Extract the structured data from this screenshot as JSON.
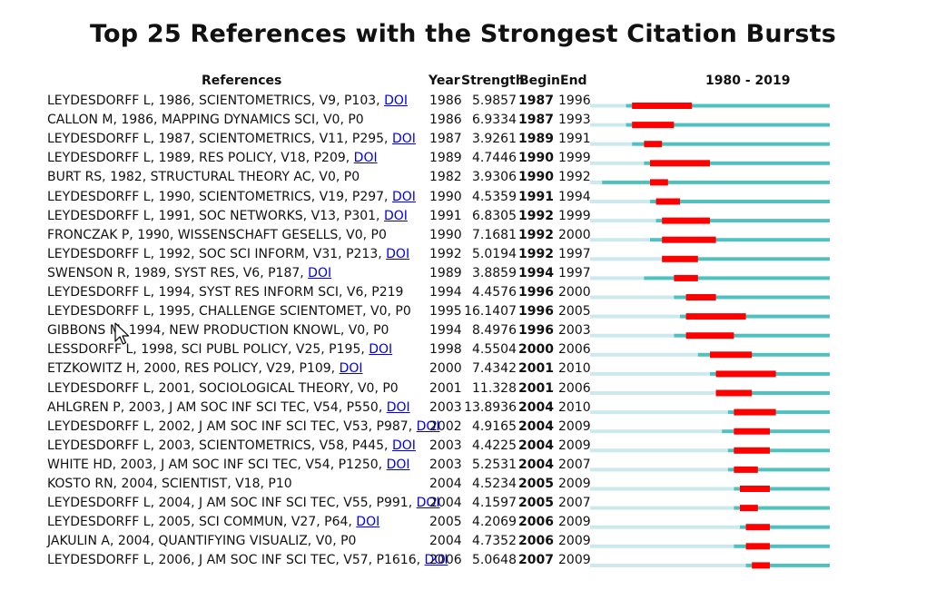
{
  "chart_data": {
    "type": "bar",
    "title": "Top 25 References with the Strongest Citation Bursts",
    "columns": [
      "References",
      "Year",
      "Strength",
      "Begin",
      "End",
      "1980 - 2019"
    ],
    "timeline": {
      "start": 1980,
      "end": 2019
    },
    "colors": {
      "burst": "#ff0000",
      "active": "#4fc1c1",
      "inactive": "#cce9ee"
    },
    "rows": [
      {
        "reference": "LEYDESDORFF L, 1986, SCIENTOMETRICS, V9, P103, ",
        "doi": "DOI",
        "year": 1986,
        "strength": "5.9857",
        "begin": 1987,
        "end": 1996
      },
      {
        "reference": "CALLON M, 1986, MAPPING DYNAMICS SCI, V0, P0",
        "doi": "",
        "year": 1986,
        "strength": "6.9334",
        "begin": 1987,
        "end": 1993
      },
      {
        "reference": "LEYDESDORFF L, 1987, SCIENTOMETRICS, V11, P295, ",
        "doi": "DOI",
        "year": 1987,
        "strength": "3.9261",
        "begin": 1989,
        "end": 1991
      },
      {
        "reference": "LEYDESDORFF L, 1989, RES POLICY, V18, P209, ",
        "doi": "DOI",
        "year": 1989,
        "strength": "4.7446",
        "begin": 1990,
        "end": 1999
      },
      {
        "reference": "BURT RS, 1982, STRUCTURAL THEORY AC, V0, P0",
        "doi": "",
        "year": 1982,
        "strength": "3.9306",
        "begin": 1990,
        "end": 1992
      },
      {
        "reference": "LEYDESDORFF L, 1990, SCIENTOMETRICS, V19, P297, ",
        "doi": "DOI",
        "year": 1990,
        "strength": "4.5359",
        "begin": 1991,
        "end": 1994
      },
      {
        "reference": "LEYDESDORFF L, 1991, SOC NETWORKS, V13, P301, ",
        "doi": "DOI",
        "year": 1991,
        "strength": "6.8305",
        "begin": 1992,
        "end": 1999
      },
      {
        "reference": "FRONCZAK P, 1990, WISSENSCHAFT GESELLS, V0, P0",
        "doi": "",
        "year": 1990,
        "strength": "7.1681",
        "begin": 1992,
        "end": 2000
      },
      {
        "reference": "LEYDESDORFF L, 1992, SOC SCI INFORM, V31, P213, ",
        "doi": "DOI",
        "year": 1992,
        "strength": "5.0194",
        "begin": 1992,
        "end": 1997
      },
      {
        "reference": "SWENSON R, 1989, SYST RES, V6, P187, ",
        "doi": "DOI",
        "year": 1989,
        "strength": "3.8859",
        "begin": 1994,
        "end": 1997
      },
      {
        "reference": "LEYDESDORFF L, 1994, SYST RES INFORM SCI, V6, P219",
        "doi": "",
        "year": 1994,
        "strength": "4.4576",
        "begin": 1996,
        "end": 2000
      },
      {
        "reference": "LEYDESDORFF L, 1995, CHALLENGE SCIENTOMET, V0, P0",
        "doi": "",
        "year": 1995,
        "strength": "16.1407",
        "begin": 1996,
        "end": 2005
      },
      {
        "reference": "GIBBONS M, 1994, NEW PRODUCTION KNOWL, V0, P0",
        "doi": "",
        "year": 1994,
        "strength": "8.4976",
        "begin": 1996,
        "end": 2003
      },
      {
        "reference": "LESSDORFF L, 1998, SCI PUBL POLICY, V25, P195, ",
        "doi": "DOI",
        "year": 1998,
        "strength": "4.5504",
        "begin": 2000,
        "end": 2006
      },
      {
        "reference": "ETZKOWITZ H, 2000, RES POLICY, V29, P109, ",
        "doi": "DOI",
        "year": 2000,
        "strength": "7.4342",
        "begin": 2001,
        "end": 2010
      },
      {
        "reference": "LEYDESDORFF L, 2001, SOCIOLOGICAL THEORY, V0, P0",
        "doi": "",
        "year": 2001,
        "strength": "11.328",
        "begin": 2001,
        "end": 2006
      },
      {
        "reference": "AHLGREN P, 2003, J AM SOC INF SCI TEC, V54, P550, ",
        "doi": "DOI",
        "year": 2003,
        "strength": "13.8936",
        "begin": 2004,
        "end": 2010
      },
      {
        "reference": "LEYDESDORFF L, 2002, J AM SOC INF SCI TEC, V53, P987, ",
        "doi": "DOI",
        "year": 2002,
        "strength": "4.9165",
        "begin": 2004,
        "end": 2009
      },
      {
        "reference": "LEYDESDORFF L, 2003, SCIENTOMETRICS, V58, P445, ",
        "doi": "DOI",
        "year": 2003,
        "strength": "4.4225",
        "begin": 2004,
        "end": 2009
      },
      {
        "reference": "WHITE HD, 2003, J AM SOC INF SCI TEC, V54, P1250, ",
        "doi": "DOI",
        "year": 2003,
        "strength": "5.2531",
        "begin": 2004,
        "end": 2007
      },
      {
        "reference": "KOSTO RN, 2004, SCIENTIST, V18, P10",
        "doi": "",
        "year": 2004,
        "strength": "4.5234",
        "begin": 2005,
        "end": 2009
      },
      {
        "reference": "LEYDESDORFF L, 2004, J AM SOC INF SCI TEC, V55, P991, ",
        "doi": "DOI",
        "year": 2004,
        "strength": "4.1597",
        "begin": 2005,
        "end": 2007
      },
      {
        "reference": "LEYDESDORFF L, 2005, SCI COMMUN, V27, P64, ",
        "doi": "DOI",
        "year": 2005,
        "strength": "4.2069",
        "begin": 2006,
        "end": 2009
      },
      {
        "reference": "JAKULIN A, 2004, QUANTIFYING VISUALIZ, V0, P0",
        "doi": "",
        "year": 2004,
        "strength": "4.7352",
        "begin": 2006,
        "end": 2009
      },
      {
        "reference": "LEYDESDORFF L, 2006, J AM SOC INF SCI TEC, V57, P1616, ",
        "doi": "DOI",
        "year": 2006,
        "strength": "5.0648",
        "begin": 2007,
        "end": 2009
      }
    ]
  }
}
